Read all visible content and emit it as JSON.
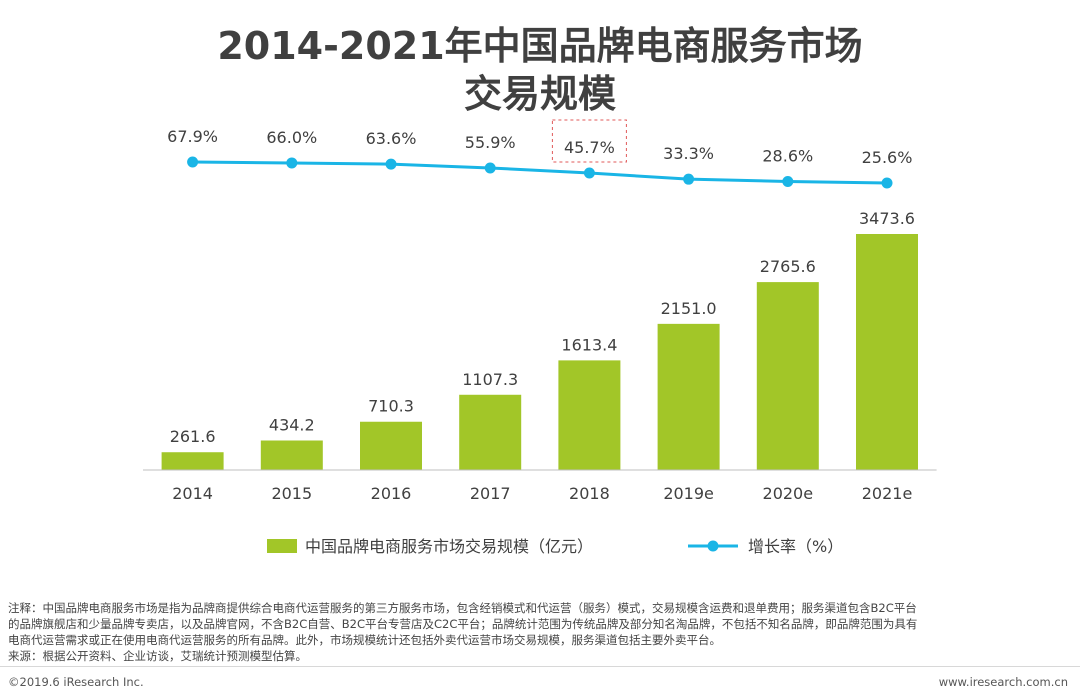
{
  "chart_data": {
    "type": "bar+line",
    "title_line1": "2014-2021年中国品牌电商服务市场",
    "title_line2": "交易规模",
    "categories": [
      "2014",
      "2015",
      "2016",
      "2017",
      "2018",
      "2019e",
      "2020e",
      "2021e"
    ],
    "series": [
      {
        "name": "中国品牌电商服务市场交易规模（亿元）",
        "type": "bar",
        "values": [
          261.6,
          434.2,
          710.3,
          1107.3,
          1613.4,
          2151.0,
          2765.6,
          3473.6
        ],
        "labels": [
          "261.6",
          "434.2",
          "710.3",
          "1107.3",
          "1613.4",
          "2151.0",
          "2765.6",
          "3473.6"
        ],
        "color": "#a2c628"
      },
      {
        "name": "增长率（%）",
        "type": "line",
        "values": [
          67.9,
          66.0,
          63.6,
          55.9,
          45.7,
          33.3,
          28.6,
          25.6
        ],
        "labels": [
          "67.9%",
          "66.0%",
          "63.6%",
          "55.9%",
          "45.7%",
          "33.3%",
          "28.6%",
          "25.6%"
        ],
        "color": "#1ab5e6",
        "highlighted_index": 4
      }
    ],
    "highlight_color": "#e05a5a",
    "ylim": [
      0,
      3600
    ],
    "legend_position": "bottom"
  },
  "notes": {
    "line1": "注释：中国品牌电商服务市场是指为品牌商提供综合电商代运营服务的第三方服务市场，包含经销模式和代运营（服务）模式，交易规模含运费和退单费用；服务渠道包含B2C平台",
    "line2": "的品牌旗舰店和少量品牌专卖店，以及品牌官网，不含B2C自营、B2C平台专营店及C2C平台；品牌统计范围为传统品牌及部分知名淘品牌，不包括不知名品牌，即品牌范围为具有",
    "line3": "电商代运营需求或正在使用电商代运营服务的所有品牌。此外，市场规模统计还包括外卖代运营市场交易规模，服务渠道包括主要外卖平台。",
    "source": "来源：根据公开资料、企业访谈，艾瑞统计预测模型估算。"
  },
  "footer": {
    "copyright": "©2019.6 iResearch Inc.",
    "website": "www.iresearch.com.cn"
  }
}
